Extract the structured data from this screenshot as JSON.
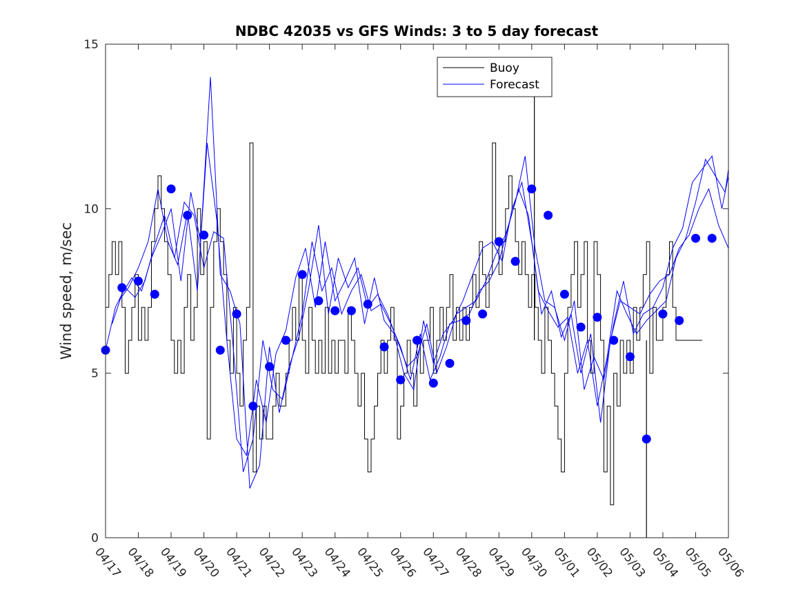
{
  "chart_data": {
    "type": "line",
    "title": "NDBC 42035 vs GFS Winds: 3 to 5 day forecast",
    "xlabel": "",
    "ylabel": "Wind speed, m/sec",
    "ylim": [
      0,
      15
    ],
    "yticks": [
      0,
      5,
      10,
      15
    ],
    "xlim": [
      0,
      19
    ],
    "xtick_labels": [
      "04/17",
      "04/18",
      "04/19",
      "04/20",
      "04/21",
      "04/22",
      "04/23",
      "04/24",
      "04/25",
      "04/26",
      "04/27",
      "04/28",
      "04/29",
      "04/30",
      "05/01",
      "05/02",
      "05/03",
      "05/04",
      "05/05",
      "05/06"
    ],
    "grid": false,
    "legend": {
      "placement": "top-center",
      "entries": [
        "Buoy",
        "Forecast"
      ]
    },
    "colors": {
      "buoy": "#000000",
      "forecast": "#0000ff"
    },
    "series": [
      {
        "name": "Buoy",
        "x": [
          0.0,
          0.1,
          0.2,
          0.3,
          0.4,
          0.5,
          0.6,
          0.7,
          0.8,
          0.9,
          1.0,
          1.1,
          1.2,
          1.3,
          1.4,
          1.5,
          1.6,
          1.7,
          1.8,
          1.9,
          2.0,
          2.1,
          2.2,
          2.3,
          2.4,
          2.5,
          2.6,
          2.7,
          2.8,
          2.9,
          3.0,
          3.1,
          3.2,
          3.3,
          3.4,
          3.5,
          3.6,
          3.7,
          3.8,
          3.9,
          4.0,
          4.1,
          4.2,
          4.3,
          4.4,
          4.5,
          4.6,
          4.7,
          4.8,
          4.9,
          5.0,
          5.1,
          5.2,
          5.3,
          5.4,
          5.5,
          5.6,
          5.7,
          5.8,
          5.9,
          6.0,
          6.1,
          6.2,
          6.3,
          6.4,
          6.5,
          6.6,
          6.7,
          6.8,
          6.9,
          7.0,
          7.1,
          7.2,
          7.3,
          7.4,
          7.5,
          7.6,
          7.7,
          7.8,
          7.9,
          8.0,
          8.1,
          8.2,
          8.3,
          8.4,
          8.5,
          8.6,
          8.7,
          8.8,
          8.9,
          9.0,
          9.1,
          9.2,
          9.3,
          9.4,
          9.5,
          9.6,
          9.7,
          9.8,
          9.9,
          10.0,
          10.1,
          10.2,
          10.3,
          10.4,
          10.5,
          10.6,
          10.7,
          10.8,
          10.9,
          11.0,
          11.1,
          11.2,
          11.3,
          11.4,
          11.5,
          11.6,
          11.7,
          11.8,
          11.9,
          12.0,
          12.1,
          12.2,
          12.3,
          12.4,
          12.5,
          12.6,
          12.7,
          12.8,
          12.9,
          13.0,
          13.1,
          13.2,
          13.3,
          13.4,
          13.5,
          13.6,
          13.7,
          13.8,
          13.9,
          14.0,
          14.1,
          14.2,
          14.3,
          14.4,
          14.5,
          14.6,
          14.7,
          14.8,
          14.9,
          15.0,
          15.1,
          15.2,
          15.3,
          15.4,
          15.5,
          15.6,
          15.7,
          15.8,
          15.9,
          16.0,
          16.1,
          16.2,
          16.3,
          16.4,
          16.5,
          16.6,
          16.7,
          16.8,
          16.9,
          17.0,
          17.1,
          17.2,
          17.3,
          17.4,
          17.5,
          17.6,
          17.7,
          17.8,
          17.9,
          18.0,
          18.1,
          18.2
        ],
        "values": [
          7,
          8,
          9,
          8,
          9,
          7,
          5,
          6,
          7,
          8,
          6,
          7,
          6,
          7,
          9,
          10,
          11,
          10,
          9,
          8,
          6,
          5,
          6,
          5,
          7,
          8,
          6,
          7,
          10,
          8,
          9,
          3,
          7,
          9,
          10,
          9,
          8,
          6,
          5,
          7,
          5,
          4,
          6,
          7,
          12,
          2,
          4,
          3,
          4,
          3,
          3,
          4,
          5,
          4,
          4,
          5,
          6,
          7,
          6,
          8,
          6,
          5,
          7,
          6,
          5,
          6,
          5,
          7,
          5,
          6,
          5,
          6,
          6,
          5,
          7,
          6,
          5,
          4,
          5,
          3,
          2,
          3,
          4,
          5,
          6,
          5,
          6,
          7,
          6,
          3,
          4,
          5,
          6,
          5,
          4,
          6,
          5,
          6,
          6,
          7,
          5,
          6,
          7,
          6,
          7,
          8,
          6,
          7,
          6,
          7,
          6,
          7,
          8,
          7,
          9,
          8,
          7,
          8,
          12,
          9,
          8,
          9,
          10,
          11,
          10,
          9,
          8,
          9,
          8,
          7,
          8,
          7,
          6,
          5,
          7,
          6,
          5,
          4,
          3,
          2,
          5,
          7,
          8,
          9,
          7,
          8,
          9,
          6,
          5,
          9,
          8,
          6,
          2,
          4,
          1,
          5,
          4,
          6,
          5,
          6,
          5,
          7,
          6,
          7,
          8,
          9,
          5,
          7,
          6,
          6,
          7,
          8,
          9,
          7,
          6,
          6,
          6,
          6,
          6,
          6,
          6,
          6,
          6
        ],
        "spikes": [
          {
            "x": 13.08,
            "value": 14
          },
          {
            "x": 16.5,
            "value": 0
          }
        ]
      },
      {
        "name": "Forecast",
        "runs": [
          {
            "x": [
              0,
              0.3,
              0.6,
              0.9,
              1.2,
              1.5,
              1.8,
              2.1,
              2.4,
              2.7,
              3.0,
              3.3,
              3.6,
              3.9,
              4.2,
              4.5,
              4.8,
              5.1,
              5.4,
              5.7,
              6.0,
              6.3,
              6.6,
              6.9,
              7.2,
              7.5,
              7.8,
              8.1,
              8.4,
              8.7,
              9.0,
              9.3,
              9.6,
              9.9,
              10.2,
              10.5,
              10.8,
              11.1,
              11.4,
              11.7,
              12.0,
              12.3,
              12.6,
              12.9,
              13.2,
              13.5,
              13.8,
              14.1,
              14.4,
              14.7,
              15.0,
              15.3,
              15.6,
              15.9,
              16.2,
              16.5,
              16.8,
              17.1,
              17.4,
              17.7,
              18.0,
              18.3,
              18.6,
              18.9,
              19.0
            ],
            "values": [
              5.7,
              7.0,
              7.6,
              7.3,
              7.8,
              8.9,
              9.8,
              8.5,
              10.2,
              9.8,
              8.2,
              9.3,
              9.1,
              5.7,
              2.0,
              3.0,
              6.0,
              4.5,
              4.2,
              5.5,
              6.8,
              9.0,
              7.5,
              8.2,
              6.8,
              7.5,
              8.0,
              6.9,
              7.1,
              6.5,
              5.8,
              4.8,
              6.2,
              4.8,
              5.5,
              6.5,
              6.6,
              6.8,
              7.5,
              7.8,
              8.4,
              9.5,
              10.6,
              9.8,
              7.5,
              6.9,
              6.4,
              6.7,
              5.0,
              6.0,
              4.0,
              5.5,
              7.5,
              6.8,
              6.2,
              6.6,
              6.9,
              7.2,
              8.5,
              9.1,
              10.2,
              11.5,
              11.0,
              10.5,
              11.2
            ]
          },
          {
            "x": [
              0.2,
              0.5,
              0.8,
              1.1,
              1.4,
              1.7,
              2.0,
              2.3,
              2.6,
              2.9,
              3.2,
              3.5,
              3.8,
              4.1,
              4.4,
              4.7,
              5.0,
              5.3,
              5.6,
              5.9,
              6.2,
              6.5,
              6.8,
              7.1,
              7.4,
              7.7,
              8.0,
              8.3,
              8.6,
              8.9,
              9.2,
              9.5,
              9.8,
              10.1,
              10.4,
              10.7,
              11.0,
              11.3,
              11.6,
              11.9,
              12.2,
              12.5,
              12.8,
              13.1,
              13.4,
              13.7,
              14.0,
              14.3,
              14.6,
              14.9,
              15.2,
              15.5,
              15.8,
              16.1,
              16.4,
              16.7,
              17.0,
              17.3,
              17.6,
              17.9,
              18.2,
              18.5,
              18.8,
              19.0
            ],
            "values": [
              6.5,
              7.4,
              7.9,
              7.5,
              8.5,
              9.2,
              10.0,
              7.8,
              10.5,
              9.0,
              14.0,
              8.0,
              7.5,
              6.5,
              1.5,
              2.2,
              5.8,
              3.8,
              5.2,
              6.1,
              7.6,
              9.5,
              6.8,
              8.5,
              7.6,
              8.2,
              7.0,
              7.4,
              6.8,
              6.0,
              5.2,
              5.5,
              6.5,
              5.0,
              5.8,
              6.8,
              7.0,
              7.2,
              7.8,
              8.6,
              9.2,
              10.2,
              11.6,
              8.8,
              7.2,
              7.0,
              6.0,
              7.2,
              4.5,
              5.5,
              4.8,
              6.5,
              7.8,
              6.2,
              6.8,
              7.0,
              7.6,
              8.8,
              9.4,
              10.8,
              11.2,
              11.6,
              10.0,
              11.0
            ]
          },
          {
            "x": [
              0.4,
              0.7,
              1.0,
              1.3,
              1.6,
              1.9,
              2.2,
              2.5,
              2.8,
              3.1,
              3.4,
              3.7,
              4.0,
              4.3,
              4.6,
              4.9,
              5.2,
              5.5,
              5.8,
              6.1,
              6.4,
              6.7,
              7.0,
              7.3,
              7.6,
              7.9,
              8.2,
              8.5,
              8.8,
              9.1,
              9.4,
              9.7,
              10.0,
              10.3,
              10.6,
              10.9,
              11.2,
              11.5,
              11.8,
              12.1,
              12.4,
              12.7,
              13.0,
              13.3,
              13.6,
              13.9,
              14.2,
              14.5,
              14.8,
              15.1,
              15.4,
              15.7,
              16.0,
              16.3,
              16.6,
              16.9,
              17.2,
              17.5,
              17.8,
              18.1,
              18.4,
              18.7,
              19.0
            ],
            "values": [
              7.2,
              7.6,
              8.2,
              9.0,
              10.6,
              9.0,
              8.3,
              9.9,
              7.5,
              12.0,
              9.6,
              6.0,
              3.0,
              2.5,
              4.8,
              3.5,
              5.6,
              6.3,
              7.9,
              8.8,
              7.0,
              9.0,
              7.2,
              7.8,
              8.5,
              6.5,
              7.9,
              6.6,
              6.2,
              5.0,
              4.5,
              6.6,
              5.3,
              6.2,
              6.6,
              7.2,
              8.0,
              8.8,
              9.0,
              8.4,
              10.0,
              10.8,
              9.0,
              6.8,
              7.5,
              6.1,
              6.8,
              5.0,
              6.2,
              3.5,
              6.0,
              7.2,
              7.0,
              6.8,
              7.4,
              7.8,
              8.0,
              8.8,
              9.2,
              10.0,
              10.6,
              9.5,
              8.8
            ]
          }
        ],
        "markers": {
          "x": [
            0,
            0.5,
            1.0,
            1.5,
            2.0,
            2.5,
            3.0,
            3.5,
            4.0,
            4.5,
            5.0,
            5.5,
            6.0,
            6.5,
            7.0,
            7.5,
            8.0,
            8.5,
            9.0,
            9.5,
            10.0,
            10.5,
            11.0,
            11.5,
            12.0,
            12.5,
            13.0,
            13.5,
            14.0,
            14.5,
            15.0,
            15.5,
            16.0,
            16.5,
            17.0,
            17.5,
            18.0,
            18.5
          ],
          "values": [
            5.7,
            7.6,
            7.8,
            7.4,
            10.6,
            9.8,
            9.2,
            5.7,
            6.8,
            4.0,
            5.2,
            6.0,
            8.0,
            7.2,
            6.9,
            6.9,
            7.1,
            5.8,
            4.8,
            6.0,
            4.7,
            5.3,
            6.6,
            6.8,
            9.0,
            8.4,
            10.6,
            9.8,
            7.4,
            6.4,
            6.7,
            6.0,
            5.5,
            3.0,
            6.8,
            6.6,
            9.1,
            9.1
          ]
        }
      }
    ]
  }
}
